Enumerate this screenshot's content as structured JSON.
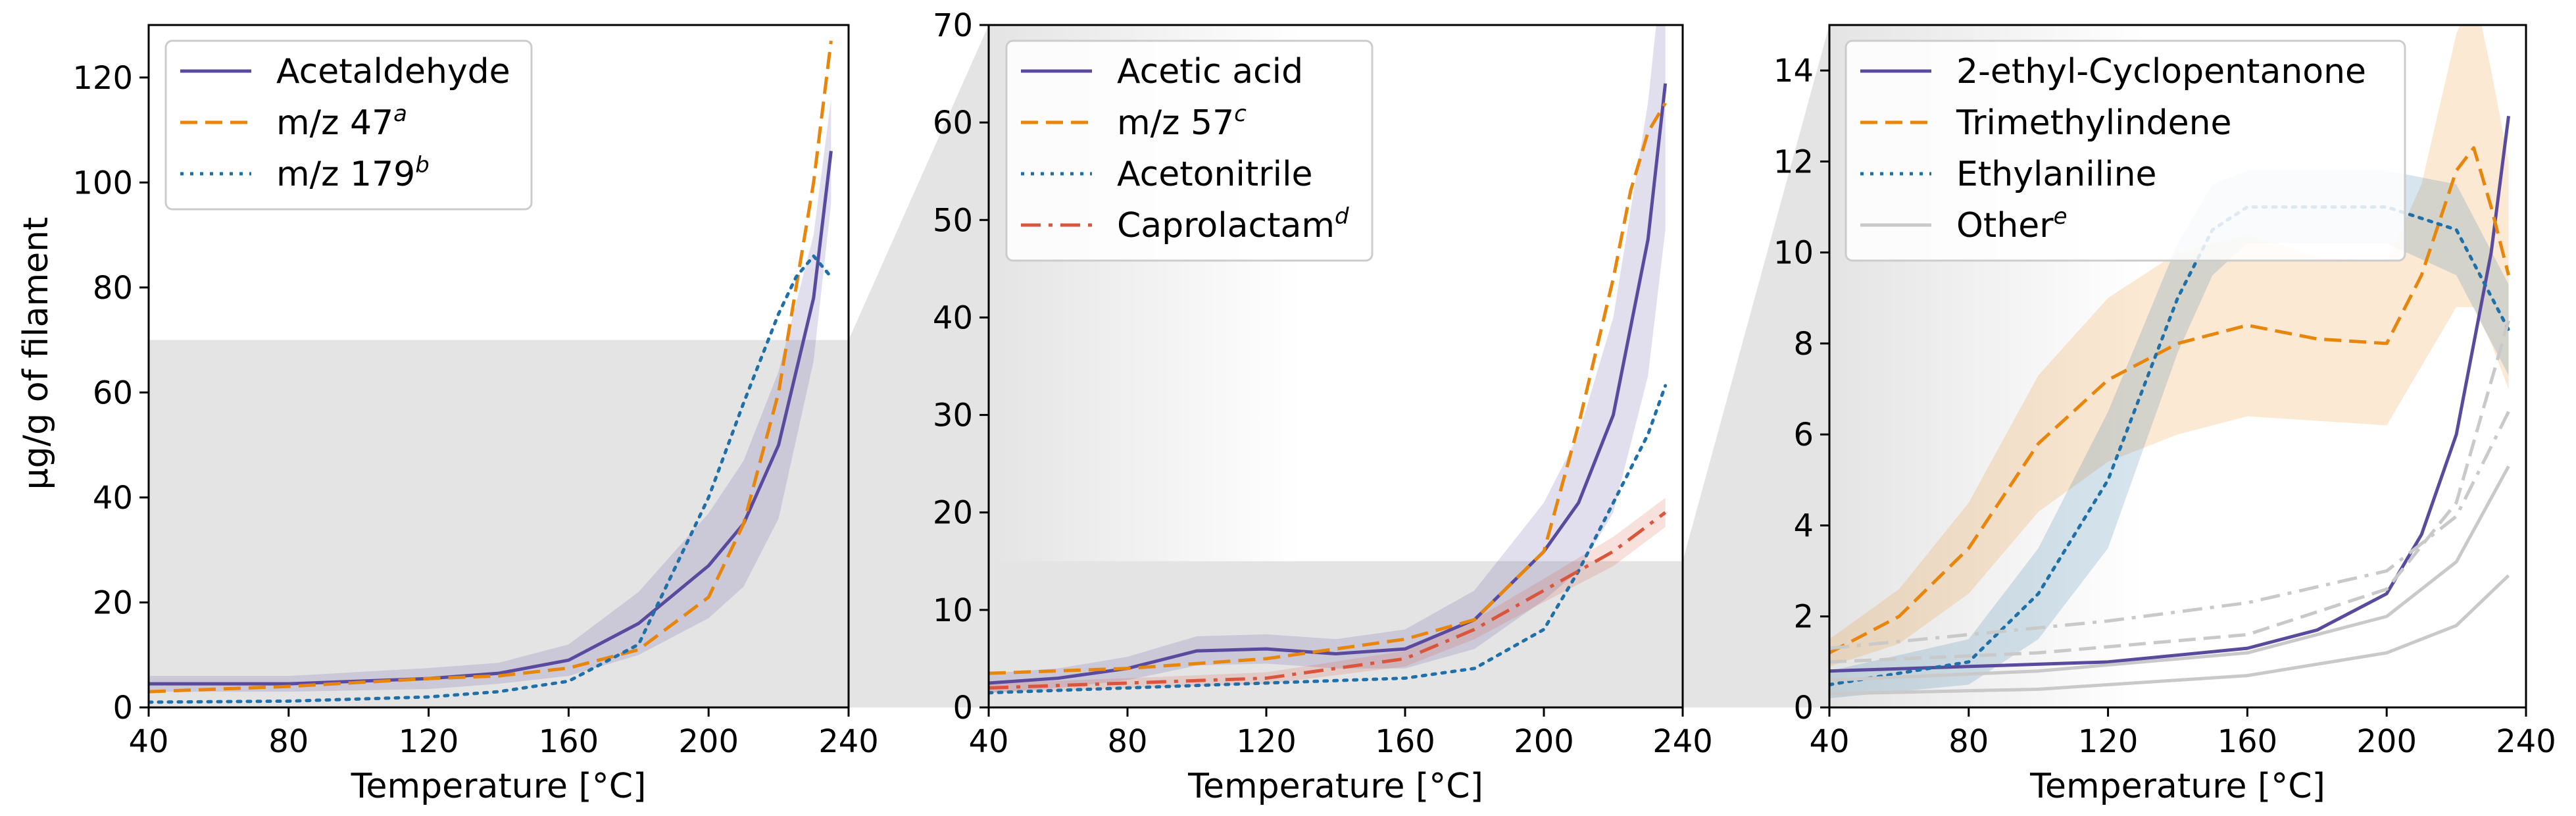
{
  "figure": {
    "ylabel": "μg/g of filament",
    "colors": {
      "purple": "#5a4a9e",
      "orange": "#e8860c",
      "blue": "#1f6fa8",
      "red": "#d9553b",
      "gray": "#c9c9c9",
      "shade": "#e4e4e4"
    }
  },
  "chart_data": [
    {
      "type": "line",
      "xlabel": "Temperature [°C]",
      "xlim": [
        40,
        240
      ],
      "ylim": [
        0,
        130
      ],
      "xticks": [
        40,
        80,
        120,
        160,
        200,
        240
      ],
      "yticks": [
        0,
        20,
        40,
        60,
        80,
        100,
        120
      ],
      "zoom_region": {
        "x": [
          40,
          240
        ],
        "y": [
          0,
          70
        ]
      },
      "series": [
        {
          "name": "Acetaldehyde",
          "sup": "",
          "color": "purple",
          "dash": "solid",
          "x": [
            40,
            80,
            120,
            140,
            160,
            180,
            200,
            210,
            220,
            230,
            235
          ],
          "y": [
            4.5,
            4.5,
            5.5,
            6.5,
            9,
            16,
            27,
            35,
            50,
            78,
            106
          ],
          "band": [
            1.5,
            1.5,
            2,
            2,
            3,
            6,
            10,
            12,
            14,
            12,
            10
          ]
        },
        {
          "name": "m/z 47",
          "sup": "a",
          "color": "orange",
          "dash": "dashed",
          "x": [
            40,
            80,
            120,
            140,
            160,
            180,
            200,
            210,
            220,
            230,
            235
          ],
          "y": [
            3,
            4,
            5.5,
            6,
            7.5,
            11,
            21,
            35,
            60,
            100,
            127
          ],
          "band": null
        },
        {
          "name": "m/z 179",
          "sup": "b",
          "color": "blue",
          "dash": "dotted",
          "x": [
            40,
            80,
            120,
            140,
            160,
            180,
            200,
            210,
            220,
            225,
            230,
            235
          ],
          "y": [
            1,
            1.2,
            2,
            3,
            5,
            12,
            40,
            58,
            75,
            82,
            86,
            82
          ],
          "band": null
        }
      ]
    },
    {
      "type": "line",
      "xlabel": "Temperature [°C]",
      "xlim": [
        40,
        240
      ],
      "ylim": [
        0,
        70
      ],
      "xticks": [
        40,
        80,
        120,
        160,
        200,
        240
      ],
      "yticks": [
        0,
        10,
        20,
        30,
        40,
        50,
        60,
        70
      ],
      "zoom_region": {
        "x": [
          40,
          240
        ],
        "y": [
          0,
          15
        ]
      },
      "series": [
        {
          "name": "Acetic acid",
          "sup": "",
          "color": "purple",
          "dash": "solid",
          "x": [
            40,
            60,
            80,
            100,
            120,
            140,
            160,
            180,
            200,
            210,
            220,
            230,
            235
          ],
          "y": [
            2.5,
            3,
            4,
            5.8,
            6,
            5.5,
            6,
            9,
            16,
            21,
            30,
            48,
            64
          ],
          "band": [
            1,
            1,
            1.2,
            1.5,
            1.5,
            1.5,
            2,
            3,
            5,
            7,
            10,
            14,
            15
          ]
        },
        {
          "name": "m/z 57",
          "sup": "c",
          "color": "orange",
          "dash": "dashed",
          "x": [
            40,
            80,
            120,
            140,
            160,
            180,
            200,
            210,
            220,
            225,
            230,
            235
          ],
          "y": [
            3.5,
            4,
            5,
            6,
            7,
            9,
            16,
            29,
            44,
            53,
            59,
            62
          ],
          "band": null
        },
        {
          "name": "Acetonitrile",
          "sup": "",
          "color": "blue",
          "dash": "dotted",
          "x": [
            40,
            80,
            120,
            160,
            180,
            200,
            210,
            220,
            230,
            235
          ],
          "y": [
            1.5,
            2,
            2.5,
            3,
            4,
            8,
            14,
            21,
            28,
            33
          ],
          "band": null
        },
        {
          "name": "Caprolactam",
          "sup": "d",
          "color": "red",
          "dash": "dashdot",
          "x": [
            40,
            80,
            120,
            160,
            180,
            200,
            220,
            235
          ],
          "y": [
            2,
            2.5,
            3,
            5,
            8,
            12,
            16,
            20
          ],
          "band": [
            0.5,
            0.5,
            0.6,
            0.8,
            1,
            1.2,
            1.5,
            1.5
          ]
        }
      ]
    },
    {
      "type": "line",
      "xlabel": "Temperature [°C]",
      "xlim": [
        40,
        240
      ],
      "ylim": [
        0,
        15
      ],
      "xticks": [
        40,
        80,
        120,
        160,
        200,
        240
      ],
      "yticks": [
        0,
        2,
        4,
        6,
        8,
        10,
        12,
        14
      ],
      "zoom_region": null,
      "series": [
        {
          "name": "2-ethyl-Cyclopentanone",
          "sup": "",
          "color": "purple",
          "dash": "solid",
          "x": [
            40,
            80,
            120,
            160,
            180,
            200,
            210,
            220,
            230,
            235
          ],
          "y": [
            0.8,
            0.9,
            1.0,
            1.3,
            1.7,
            2.5,
            3.8,
            6,
            10,
            13
          ],
          "band": null
        },
        {
          "name": "Trimethylindene",
          "sup": "",
          "color": "orange",
          "dash": "dashed",
          "x": [
            40,
            60,
            80,
            100,
            120,
            140,
            160,
            180,
            200,
            210,
            220,
            225,
            230,
            235
          ],
          "y": [
            1.2,
            2,
            3.5,
            5.8,
            7.2,
            8,
            8.4,
            8.1,
            8,
            9.5,
            11.8,
            12.3,
            11,
            9.5
          ],
          "band": [
            0.3,
            0.6,
            1,
            1.5,
            1.8,
            2,
            2,
            1.8,
            1.8,
            2,
            3,
            3.5,
            3,
            2.5
          ]
        },
        {
          "name": "Ethylaniline",
          "sup": "",
          "color": "blue",
          "dash": "dotted",
          "x": [
            40,
            80,
            100,
            120,
            140,
            150,
            160,
            180,
            200,
            220,
            235
          ],
          "y": [
            0.5,
            1,
            2.5,
            5,
            9,
            10.5,
            11,
            11,
            11,
            10.5,
            8.3
          ],
          "band": [
            0.3,
            0.5,
            1,
            1.5,
            1.2,
            1,
            0.8,
            0.8,
            0.8,
            1,
            1
          ]
        },
        {
          "name": "Other",
          "sup": "e",
          "color": "gray",
          "dash": "solid",
          "x": [
            40,
            100,
            160,
            200,
            220,
            235
          ],
          "y": [
            0.3,
            0.4,
            0.7,
            1.2,
            1.8,
            2.9
          ],
          "band": null
        },
        {
          "name": "",
          "sup": "",
          "color": "gray",
          "dash": "dashdot",
          "x": [
            40,
            80,
            120,
            160,
            200,
            220,
            235
          ],
          "y": [
            1.3,
            1.6,
            1.9,
            2.3,
            3.0,
            4.2,
            6.5
          ],
          "band": null
        },
        {
          "name": "",
          "sup": "",
          "color": "gray",
          "dash": "solid",
          "x": [
            40,
            100,
            160,
            200,
            220,
            235
          ],
          "y": [
            0.6,
            0.8,
            1.2,
            2,
            3.2,
            5.3
          ],
          "band": null
        },
        {
          "name": "",
          "sup": "",
          "color": "gray",
          "dash": "dashed",
          "x": [
            40,
            100,
            160,
            200,
            220,
            235
          ],
          "y": [
            1.0,
            1.2,
            1.6,
            2.6,
            4.5,
            8.5
          ],
          "band": null
        }
      ]
    }
  ]
}
